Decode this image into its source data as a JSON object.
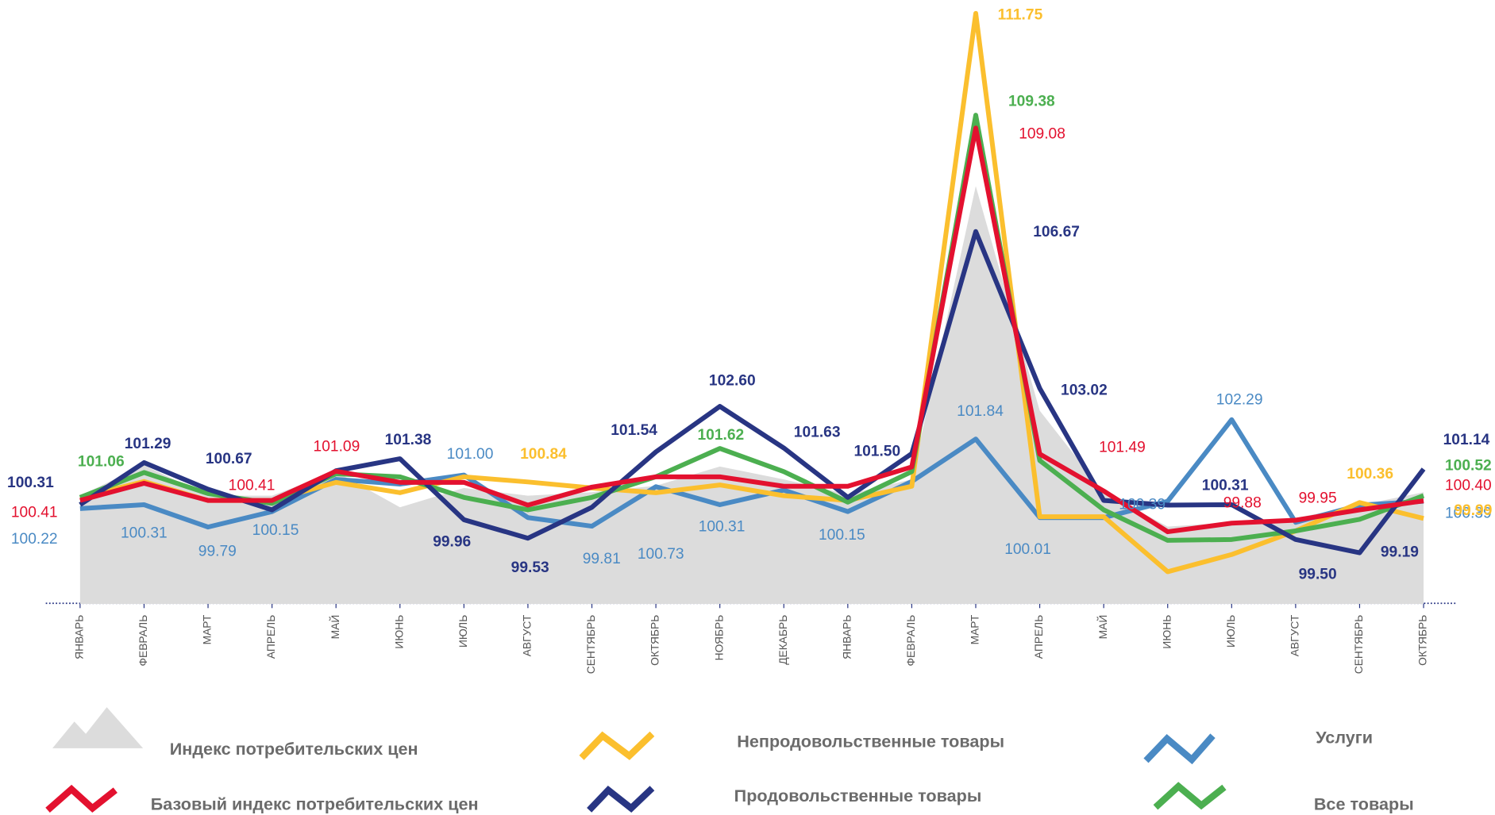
{
  "chart_data": {
    "type": "line",
    "categories": [
      "ЯНВАРЬ",
      "ФЕВРАЛЬ",
      "МАРТ",
      "АПРЕЛЬ",
      "МАЙ",
      "ИЮНЬ",
      "ИЮЛЬ",
      "АВГУСТ",
      "СЕНТЯБРЬ",
      "ОКТЯБРЬ",
      "НОЯБРЬ",
      "ДЕКАБРЬ",
      "ЯНВАРЬ",
      "ФЕВРАЛЬ",
      "МАРТ",
      "АПРЕЛЬ",
      "МАЙ",
      "ИЮНЬ",
      "ИЮЛЬ",
      "АВГУСТ",
      "СЕНТЯБРЬ",
      "ОКТЯБРЬ"
    ],
    "ylim": [
      98,
      112
    ],
    "series": [
      {
        "name": "Индекс потребительских цен",
        "type": "area",
        "color": "#dcdcdc",
        "values": [
          100.52,
          101.23,
          100.52,
          100.52,
          101.08,
          100.25,
          100.7,
          100.52,
          100.6,
          100.75,
          101.2,
          100.9,
          100.55,
          100.9,
          107.73,
          102.5,
          100.6,
          99.8,
          99.9,
          100.0,
          100.3,
          100.6
        ],
        "value_labels": [
          null,
          null,
          null,
          null,
          null,
          null,
          null,
          null,
          null,
          null,
          null,
          null,
          null,
          null,
          null,
          null,
          null,
          null,
          null,
          null,
          null,
          null
        ]
      },
      {
        "name": "Услуги",
        "color": "#4a8ac4",
        "values": [
          100.22,
          100.31,
          99.79,
          100.15,
          100.9,
          100.79,
          101.0,
          100.01,
          99.81,
          100.73,
          100.31,
          100.65,
          100.15,
          100.85,
          101.84,
          100.01,
          100.01,
          100.39,
          102.29,
          99.9,
          100.3,
          100.39
        ],
        "value_labels": [
          "100.22",
          "100.31",
          "99.79",
          "100.15",
          null,
          null,
          "101.00",
          null,
          "99.81",
          "100.73",
          "100.31",
          null,
          "100.15",
          null,
          "101.84",
          "100.01",
          null,
          "100.39",
          "102.29",
          null,
          null,
          "100.39"
        ]
      },
      {
        "name": "Непродовольственные товары",
        "color": "#fbbf2e",
        "values": [
          100.48,
          100.85,
          100.41,
          100.41,
          100.83,
          100.59,
          100.96,
          100.84,
          100.7,
          100.59,
          100.77,
          100.52,
          100.41,
          100.74,
          111.75,
          100.03,
          100.03,
          98.75,
          99.15,
          99.7,
          100.36,
          99.99
        ],
        "value_labels": [
          null,
          null,
          null,
          null,
          null,
          null,
          null,
          "100.84",
          null,
          null,
          null,
          null,
          null,
          null,
          "111.75",
          null,
          null,
          null,
          null,
          null,
          "100.36",
          "99.99"
        ]
      },
      {
        "name": "Все товары",
        "color": "#4caf50",
        "values": [
          100.48,
          101.06,
          100.57,
          100.34,
          101.03,
          100.96,
          100.48,
          100.19,
          100.48,
          100.96,
          101.62,
          101.08,
          100.37,
          101.08,
          109.38,
          101.34,
          100.19,
          99.48,
          99.5,
          99.7,
          99.97,
          100.52
        ],
        "value_labels": [
          null,
          "101.06",
          null,
          null,
          null,
          null,
          null,
          null,
          null,
          null,
          "101.62",
          null,
          null,
          null,
          "109.38",
          null,
          null,
          null,
          null,
          null,
          null,
          "100.52"
        ]
      },
      {
        "name": "Продовольственные товары",
        "color": "#283583",
        "values": [
          100.31,
          101.29,
          100.67,
          100.19,
          101.1,
          101.38,
          99.96,
          99.53,
          100.25,
          101.54,
          102.6,
          101.63,
          100.48,
          101.5,
          106.67,
          103.02,
          100.41,
          100.3,
          100.31,
          99.5,
          99.19,
          101.14
        ],
        "value_labels": [
          "100.31",
          "101.29",
          "100.67",
          null,
          null,
          "101.38",
          "99.96",
          "99.53",
          null,
          "101.54",
          "102.60",
          "101.63",
          null,
          "101.50",
          "106.67",
          "103.02",
          null,
          null,
          "100.31",
          "99.50",
          "99.19",
          "101.14"
        ]
      },
      {
        "name": "Базовый индекс потребительских цен",
        "color": "#e3112f",
        "values": [
          100.41,
          100.81,
          100.41,
          100.41,
          101.09,
          100.83,
          100.83,
          100.3,
          100.72,
          100.96,
          100.96,
          100.74,
          100.74,
          101.19,
          109.08,
          101.49,
          100.63,
          99.68,
          99.88,
          99.95,
          100.19,
          100.4
        ],
        "value_labels": [
          "100.41",
          null,
          null,
          "100.41",
          "101.09",
          null,
          null,
          null,
          null,
          null,
          null,
          null,
          null,
          null,
          "109.08",
          "101.49",
          null,
          null,
          "99.88",
          "99.95",
          null,
          "100.40"
        ]
      }
    ]
  }
}
